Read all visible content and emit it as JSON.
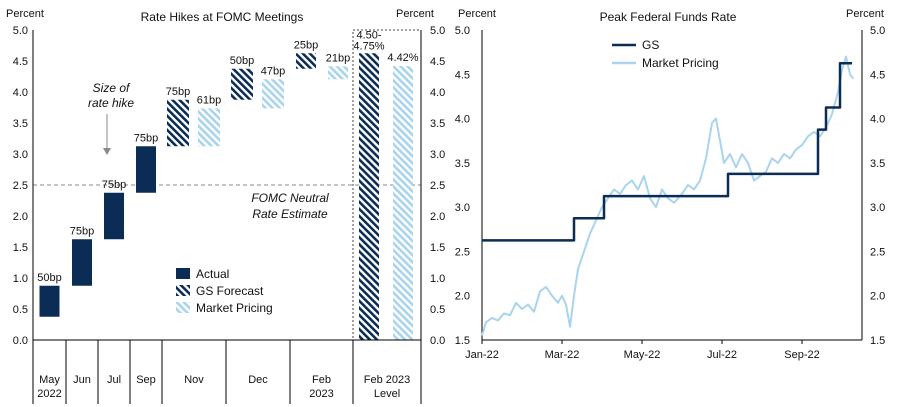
{
  "chart_data": [
    {
      "type": "bar",
      "title": "Rate Hikes at FOMC Meetings",
      "ylabel_left": "Percent",
      "ylabel_right": "Percent",
      "ylim": [
        0,
        5
      ],
      "yticks": [
        "0.0",
        "0.5",
        "1.0",
        "1.5",
        "2.0",
        "2.5",
        "3.0",
        "3.5",
        "4.0",
        "4.5",
        "5.0"
      ],
      "categories": [
        {
          "l1": "May",
          "l2": "2022"
        },
        {
          "l1": "Jun",
          "l2": ""
        },
        {
          "l1": "Jul",
          "l2": ""
        },
        {
          "l1": "Sep",
          "l2": ""
        },
        {
          "l1": "Nov",
          "l2": ""
        },
        {
          "l1": "Dec",
          "l2": ""
        },
        {
          "l1": "Feb",
          "l2": "2023"
        },
        {
          "l1": "Feb 2023",
          "l2": "Level"
        }
      ],
      "series": [
        {
          "name": "Actual",
          "color": "#0b2d55",
          "bars": [
            {
              "cat": 0,
              "from": 0.375,
              "to": 0.875,
              "label": "50bp"
            },
            {
              "cat": 1,
              "from": 0.875,
              "to": 1.625,
              "label": "75bp"
            },
            {
              "cat": 2,
              "from": 1.625,
              "to": 2.375,
              "label": "75bp"
            },
            {
              "cat": 3,
              "from": 2.375,
              "to": 3.125,
              "label": "75bp"
            }
          ]
        },
        {
          "name": "GS Forecast",
          "color": "#0b2d55",
          "bars": [
            {
              "cat": 4,
              "from": 3.125,
              "to": 3.875,
              "label": "75bp"
            },
            {
              "cat": 5,
              "from": 3.875,
              "to": 4.375,
              "label": "50bp"
            },
            {
              "cat": 6,
              "from": 4.375,
              "to": 4.625,
              "label": "25bp"
            },
            {
              "cat": 7,
              "from": 0,
              "to": 4.625,
              "label": "4.50-\n4.75%"
            }
          ]
        },
        {
          "name": "Market Pricing",
          "color": "#a9d4ee",
          "bars": [
            {
              "cat": 4,
              "from": 3.125,
              "to": 3.735,
              "label": "61bp"
            },
            {
              "cat": 5,
              "from": 3.735,
              "to": 4.205,
              "label": "47bp"
            },
            {
              "cat": 6,
              "from": 4.205,
              "to": 4.415,
              "label": "21bp"
            },
            {
              "cat": 7,
              "from": 0,
              "to": 4.42,
              "label": "4.42%"
            }
          ]
        }
      ],
      "reference_line": {
        "value": 2.5,
        "label_line1": "FOMC Neutral",
        "label_line2": "Rate Estimate"
      },
      "annotation": {
        "line1": "Size of",
        "line2": "rate hike"
      },
      "legend": [
        "Actual",
        "GS Forecast",
        "Market Pricing"
      ]
    },
    {
      "type": "line",
      "title": "Peak Federal Funds Rate",
      "ylabel_left": "Percent",
      "ylabel_right": "Percent",
      "ylim": [
        1.5,
        5.0
      ],
      "yticks": [
        "1.5",
        "2.0",
        "2.5",
        "3.0",
        "3.5",
        "4.0",
        "4.5",
        "5.0"
      ],
      "xticks": [
        "Jan-22",
        "Mar-22",
        "May-22",
        "Jul-22",
        "Sep-22"
      ],
      "xtick_months": [
        0,
        2,
        4,
        6,
        8
      ],
      "xlim_months": [
        0,
        9.5
      ],
      "series": [
        {
          "name": "GS",
          "color": "#0b2d55",
          "points": [
            [
              0,
              2.625
            ],
            [
              2.3,
              2.625
            ],
            [
              2.3,
              2.875
            ],
            [
              3.05,
              2.875
            ],
            [
              3.05,
              3.125
            ],
            [
              6.15,
              3.125
            ],
            [
              6.15,
              3.375
            ],
            [
              8.4,
              3.375
            ],
            [
              8.4,
              3.875
            ],
            [
              8.6,
              3.875
            ],
            [
              8.6,
              4.125
            ],
            [
              8.95,
              4.125
            ],
            [
              8.95,
              4.625
            ],
            [
              9.25,
              4.625
            ]
          ]
        },
        {
          "name": "Market Pricing",
          "color": "#a9d4ee",
          "points": [
            [
              0,
              1.55
            ],
            [
              0.1,
              1.7
            ],
            [
              0.25,
              1.75
            ],
            [
              0.4,
              1.72
            ],
            [
              0.55,
              1.8
            ],
            [
              0.7,
              1.78
            ],
            [
              0.85,
              1.92
            ],
            [
              1.0,
              1.85
            ],
            [
              1.15,
              1.9
            ],
            [
              1.3,
              1.82
            ],
            [
              1.45,
              2.05
            ],
            [
              1.6,
              2.1
            ],
            [
              1.75,
              2.0
            ],
            [
              1.9,
              1.92
            ],
            [
              2.0,
              2.0
            ],
            [
              2.1,
              1.9
            ],
            [
              2.2,
              1.65
            ],
            [
              2.3,
              2.0
            ],
            [
              2.4,
              2.3
            ],
            [
              2.55,
              2.5
            ],
            [
              2.7,
              2.7
            ],
            [
              2.85,
              2.85
            ],
            [
              3.0,
              3.0
            ],
            [
              3.15,
              3.1
            ],
            [
              3.3,
              3.2
            ],
            [
              3.45,
              3.15
            ],
            [
              3.6,
              3.25
            ],
            [
              3.75,
              3.3
            ],
            [
              3.9,
              3.2
            ],
            [
              4.05,
              3.35
            ],
            [
              4.2,
              3.1
            ],
            [
              4.35,
              3.0
            ],
            [
              4.5,
              3.2
            ],
            [
              4.65,
              3.1
            ],
            [
              4.8,
              3.05
            ],
            [
              5.0,
              3.15
            ],
            [
              5.15,
              3.25
            ],
            [
              5.3,
              3.2
            ],
            [
              5.45,
              3.3
            ],
            [
              5.6,
              3.55
            ],
            [
              5.75,
              3.95
            ],
            [
              5.85,
              4.0
            ],
            [
              5.95,
              3.75
            ],
            [
              6.05,
              3.5
            ],
            [
              6.2,
              3.6
            ],
            [
              6.35,
              3.45
            ],
            [
              6.5,
              3.6
            ],
            [
              6.65,
              3.5
            ],
            [
              6.8,
              3.3
            ],
            [
              6.95,
              3.35
            ],
            [
              7.1,
              3.4
            ],
            [
              7.25,
              3.55
            ],
            [
              7.4,
              3.5
            ],
            [
              7.55,
              3.6
            ],
            [
              7.7,
              3.55
            ],
            [
              7.85,
              3.65
            ],
            [
              8.0,
              3.7
            ],
            [
              8.15,
              3.8
            ],
            [
              8.3,
              3.85
            ],
            [
              8.45,
              3.8
            ],
            [
              8.6,
              3.9
            ],
            [
              8.75,
              4.05
            ],
            [
              8.9,
              4.3
            ],
            [
              9.0,
              4.55
            ],
            [
              9.1,
              4.7
            ],
            [
              9.2,
              4.5
            ],
            [
              9.28,
              4.45
            ]
          ]
        }
      ],
      "legend": [
        "GS",
        "Market Pricing"
      ]
    }
  ]
}
